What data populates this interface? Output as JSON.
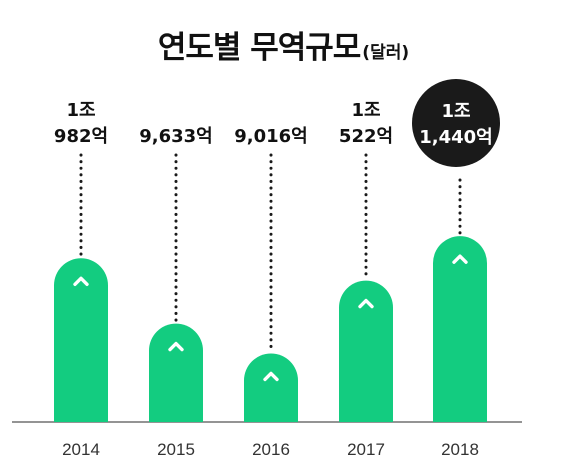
{
  "title": {
    "main": "연도별 무역규모",
    "unit": "(달러)"
  },
  "colors": {
    "bar": "#13cc80",
    "highlight_circle": "#1a1a1a",
    "dots": "#1a1a1a",
    "axis": "#555555"
  },
  "chart_data": {
    "type": "bar",
    "title": "연도별 무역규모",
    "unit_label": "(달러)",
    "categories": [
      "2014",
      "2015",
      "2016",
      "2017",
      "2018"
    ],
    "values": [
      10982,
      9633,
      9016,
      10522,
      11440
    ],
    "value_unit": "억 달러",
    "data_labels": [
      [
        "1조",
        "982억"
      ],
      [
        "9,633억"
      ],
      [
        "9,016억"
      ],
      [
        "1조",
        "522억"
      ],
      [
        "1조",
        "1,440억"
      ]
    ],
    "highlight_index": 4,
    "bar_icon": "chevron-up-icon",
    "grid": false,
    "legend": "none"
  }
}
